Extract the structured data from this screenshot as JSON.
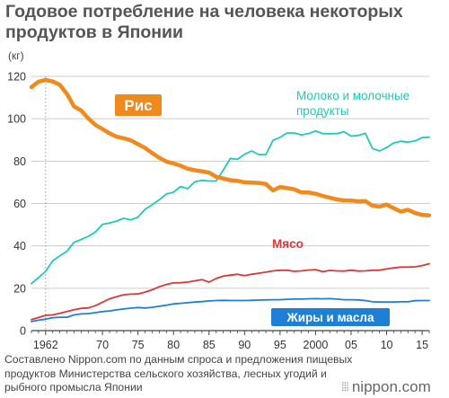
{
  "header": {
    "title": "Годовое потребление на человека некоторых продуктов в Японии"
  },
  "footer": {
    "source": "Составлено Nippon.com по данным спроса и предложения пищевых продуктов Министерства сельского хозяйства, лесных угодий и рыбного промысла Японии",
    "brand": "nippon.com",
    "brand_dots": "⁞⁞⁞"
  },
  "chart_data": {
    "type": "line",
    "title": "Годовое потребление на человека некоторых продуктов в Японии",
    "ylabel": "(кг)",
    "xlabel": "",
    "ylim": [
      0,
      120
    ],
    "xlim": [
      1960,
      2016
    ],
    "y_ticks": [
      0,
      20,
      40,
      60,
      80,
      100,
      120
    ],
    "x_ticks": [
      1962,
      1970,
      1975,
      1980,
      1985,
      1990,
      1995,
      2000,
      2005,
      2010,
      2015
    ],
    "x_tick_labels": [
      "1962",
      "70",
      "75",
      "80",
      "85",
      "90",
      "95",
      "2000",
      "05",
      "10",
      "15"
    ],
    "grid": "horizontal",
    "colors": {
      "rice": "#f08a1c",
      "milk": "#1fc9b8",
      "meat": "#d9383a",
      "fats": "#1f7fd4",
      "grid": "#cccccc",
      "axis": "#444444"
    },
    "series": [
      {
        "key": "rice",
        "name": "Рис",
        "color": "#f08a1c",
        "label_style": "badge",
        "x": [
          1960,
          1961,
          1962,
          1963,
          1964,
          1965,
          1966,
          1967,
          1968,
          1969,
          1970,
          1971,
          1972,
          1973,
          1974,
          1975,
          1976,
          1977,
          1978,
          1979,
          1980,
          1981,
          1982,
          1983,
          1984,
          1985,
          1986,
          1987,
          1988,
          1989,
          1990,
          1991,
          1992,
          1993,
          1994,
          1995,
          1996,
          1997,
          1998,
          1999,
          2000,
          2001,
          2002,
          2003,
          2004,
          2005,
          2006,
          2007,
          2008,
          2009,
          2010,
          2011,
          2012,
          2013,
          2014,
          2015,
          2016
        ],
        "values": [
          114.9,
          117.5,
          118.3,
          117.6,
          116.0,
          111.7,
          105.8,
          103.9,
          100.2,
          97.1,
          95.1,
          93.1,
          91.5,
          90.8,
          89.8,
          88.0,
          86.2,
          83.8,
          81.6,
          79.8,
          78.9,
          77.8,
          76.4,
          75.7,
          75.2,
          74.6,
          72.6,
          71.8,
          71.0,
          70.7,
          70.0,
          69.9,
          69.7,
          69.2,
          66.2,
          67.8,
          67.3,
          66.7,
          65.2,
          65.2,
          64.6,
          63.6,
          62.7,
          61.9,
          61.5,
          61.4,
          61.0,
          61.2,
          59.0,
          58.5,
          59.5,
          57.8,
          56.2,
          57.0,
          55.5,
          54.6,
          54.4
        ]
      },
      {
        "key": "milk",
        "name": "Молоко и молочные продукты",
        "color": "#1fc9b8",
        "label_style": "text",
        "x": [
          1960,
          1961,
          1962,
          1963,
          1964,
          1965,
          1966,
          1967,
          1968,
          1969,
          1970,
          1971,
          1972,
          1973,
          1974,
          1975,
          1976,
          1977,
          1978,
          1979,
          1980,
          1981,
          1982,
          1983,
          1984,
          1985,
          1986,
          1987,
          1988,
          1989,
          1990,
          1991,
          1992,
          1993,
          1994,
          1995,
          1996,
          1997,
          1998,
          1999,
          2000,
          2001,
          2002,
          2003,
          2004,
          2005,
          2006,
          2007,
          2008,
          2009,
          2010,
          2011,
          2012,
          2013,
          2014,
          2015,
          2016
        ],
        "values": [
          22.2,
          25.0,
          28.0,
          32.9,
          35.3,
          37.5,
          41.7,
          43.0,
          44.5,
          46.5,
          50.1,
          50.8,
          51.7,
          53.0,
          52.3,
          53.6,
          57.3,
          59.4,
          61.8,
          64.5,
          65.3,
          68.0,
          67.0,
          70.2,
          70.9,
          70.6,
          70.6,
          75.7,
          81.3,
          80.8,
          83.2,
          84.8,
          83.1,
          83.1,
          89.8,
          91.2,
          93.3,
          93.3,
          92.4,
          93.0,
          94.2,
          93.0,
          92.9,
          93.0,
          93.9,
          91.8,
          92.1,
          93.1,
          86.0,
          84.8,
          86.4,
          88.6,
          89.4,
          88.9,
          89.5,
          91.1,
          91.3
        ]
      },
      {
        "key": "meat",
        "name": "Мясо",
        "color": "#d9383a",
        "label_style": "text",
        "x": [
          1960,
          1961,
          1962,
          1963,
          1964,
          1965,
          1966,
          1967,
          1968,
          1969,
          1970,
          1971,
          1972,
          1973,
          1974,
          1975,
          1976,
          1977,
          1978,
          1979,
          1980,
          1981,
          1982,
          1983,
          1984,
          1985,
          1986,
          1987,
          1988,
          1989,
          1990,
          1991,
          1992,
          1993,
          1994,
          1995,
          1996,
          1997,
          1998,
          1999,
          2000,
          2001,
          2002,
          2003,
          2004,
          2005,
          2006,
          2007,
          2008,
          2009,
          2010,
          2011,
          2012,
          2013,
          2014,
          2015,
          2016
        ],
        "values": [
          5.2,
          6.2,
          7.2,
          7.4,
          8.2,
          9.0,
          9.9,
          10.5,
          10.7,
          11.8,
          13.4,
          15.0,
          16.0,
          16.9,
          17.2,
          17.3,
          18.2,
          19.3,
          20.7,
          21.8,
          22.5,
          22.6,
          22.9,
          23.5,
          24.1,
          22.9,
          24.6,
          25.7,
          26.2,
          26.6,
          26.0,
          26.6,
          27.1,
          27.6,
          28.2,
          28.5,
          28.5,
          28.0,
          28.2,
          28.6,
          28.8,
          27.8,
          28.4,
          28.2,
          28.1,
          28.5,
          28.1,
          28.2,
          28.5,
          28.5,
          29.1,
          29.6,
          30.0,
          30.0,
          30.1,
          30.7,
          31.6
        ]
      },
      {
        "key": "fats",
        "name": "Жиры и масла",
        "color": "#1f7fd4",
        "label_style": "badge",
        "x": [
          1960,
          1961,
          1962,
          1963,
          1964,
          1965,
          1966,
          1967,
          1968,
          1969,
          1970,
          1971,
          1972,
          1973,
          1974,
          1975,
          1976,
          1977,
          1978,
          1979,
          1980,
          1981,
          1982,
          1983,
          1984,
          1985,
          1986,
          1987,
          1988,
          1989,
          1990,
          1991,
          1992,
          1993,
          1994,
          1995,
          1996,
          1997,
          1998,
          1999,
          2000,
          2001,
          2002,
          2003,
          2004,
          2005,
          2006,
          2007,
          2008,
          2009,
          2010,
          2011,
          2012,
          2013,
          2014,
          2015,
          2016
        ],
        "values": [
          4.3,
          4.9,
          5.4,
          6.1,
          6.3,
          6.3,
          7.4,
          7.9,
          8.0,
          8.5,
          9.0,
          9.3,
          9.8,
          10.2,
          10.6,
          10.9,
          10.7,
          11.0,
          11.5,
          12.0,
          12.6,
          12.9,
          13.2,
          13.5,
          13.7,
          14.0,
          14.2,
          14.3,
          14.2,
          14.2,
          14.2,
          14.3,
          14.4,
          14.5,
          14.6,
          14.6,
          14.8,
          14.9,
          14.9,
          15.0,
          15.1,
          15.0,
          15.1,
          14.9,
          14.6,
          14.6,
          14.5,
          14.2,
          13.6,
          13.5,
          13.5,
          13.5,
          13.6,
          13.6,
          14.1,
          14.2,
          14.2
        ]
      }
    ]
  }
}
